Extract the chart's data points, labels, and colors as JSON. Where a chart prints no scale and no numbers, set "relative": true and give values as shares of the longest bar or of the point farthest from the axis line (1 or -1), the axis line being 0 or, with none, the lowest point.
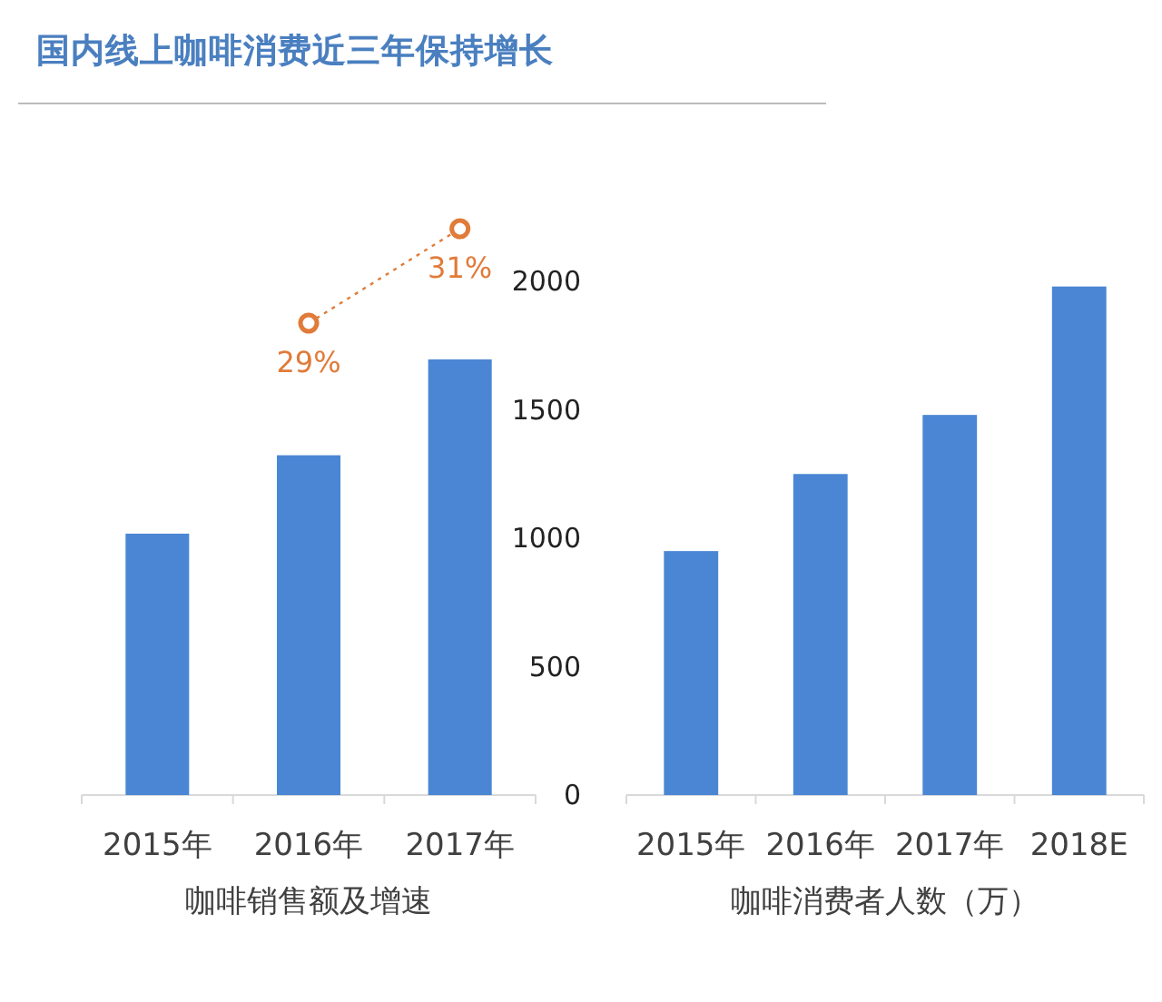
{
  "chart_data": [
    {
      "type": "bar",
      "xlabel": "咖啡销售额及增速",
      "relative": true,
      "categories": [
        "2015年",
        "2016年",
        "2017年"
      ],
      "color": "#4a86d4",
      "values": [
        0.6,
        0.78,
        1
      ]
    },
    {
      "type": "line",
      "title": "国内线上咖啡消费近三年保持增长",
      "color": "#e07b39",
      "marker": "circle",
      "line_style": "dotted",
      "values": [
        null,
        29,
        31
      ],
      "value_labels": [
        null,
        "29%",
        "31%"
      ]
    },
    {
      "type": "bar",
      "xlabel": "咖啡消费者人数（万）",
      "categories": [
        "2015年",
        "2016年",
        "2017年",
        "2018E"
      ],
      "ylim": [
        0,
        2000
      ],
      "yticks": [
        0,
        500,
        1000,
        1500,
        2000
      ],
      "color": "#4a86d4",
      "values": [
        950,
        1250,
        1480,
        1980
      ]
    }
  ]
}
